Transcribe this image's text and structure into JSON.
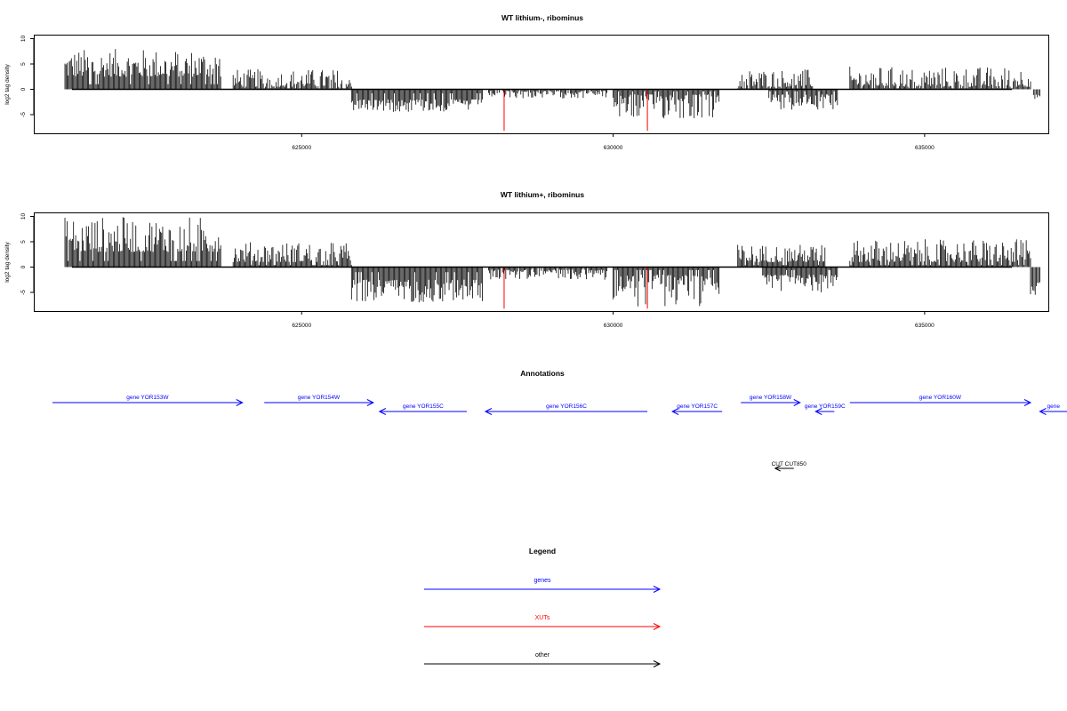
{
  "chart_data": [
    {
      "type": "bar",
      "title": "WT lithium-, ribominus",
      "xlabel": "",
      "ylabel": "log2 tag density",
      "xlim": [
        621000,
        636900
      ],
      "ylim": [
        -9,
        11
      ],
      "xticks": [
        625000,
        630000,
        635000
      ],
      "xtick_labels": [
        "625000",
        "630000",
        "635000"
      ],
      "yticks": [
        -5,
        0,
        5,
        10
      ],
      "ytick_labels": [
        "-5",
        "0",
        "5",
        "10"
      ],
      "segments": [
        {
          "strand": "+",
          "x_start": 621200,
          "x_end": 623700,
          "y_min": 2.5,
          "y_max": 8
        },
        {
          "strand": "+",
          "x_start": 623900,
          "x_end": 625800,
          "y_min": 0.5,
          "y_max": 4
        },
        {
          "strand": "-",
          "x_start": 625800,
          "x_end": 627900,
          "y_min": -2,
          "y_max": -4.5
        },
        {
          "strand": "-",
          "x_start": 628000,
          "x_end": 629900,
          "y_min": -0.3,
          "y_max": -1.8
        },
        {
          "strand": "-",
          "x_start": 630000,
          "x_end": 631700,
          "y_min": -1,
          "y_max": -6
        },
        {
          "strand": "+",
          "x_start": 632000,
          "x_end": 633200,
          "y_min": 0.5,
          "y_max": 4
        },
        {
          "strand": "-",
          "x_start": 632500,
          "x_end": 633600,
          "y_min": -1,
          "y_max": -4
        },
        {
          "strand": "+",
          "x_start": 633800,
          "x_end": 636700,
          "y_min": 0.5,
          "y_max": 4.5
        },
        {
          "strand": "-",
          "x_start": 636750,
          "x_end": 636850,
          "y_min": -1,
          "y_max": -2
        }
      ],
      "highlight_x": [
        628250,
        630550
      ],
      "highlight_y": -8.2
    },
    {
      "type": "bar",
      "title": "WT lithium+, ribominus",
      "xlabel": "",
      "ylabel": "log2 tag density",
      "xlim": [
        621000,
        636900
      ],
      "ylim": [
        -9,
        11
      ],
      "xticks": [
        625000,
        630000,
        635000
      ],
      "xtick_labels": [
        "625000",
        "630000",
        "635000"
      ],
      "yticks": [
        -5,
        0,
        5,
        10
      ],
      "ytick_labels": [
        "-5",
        "0",
        "5",
        "10"
      ],
      "segments": [
        {
          "strand": "+",
          "x_start": 621200,
          "x_end": 623700,
          "y_min": 3,
          "y_max": 10
        },
        {
          "strand": "+",
          "x_start": 623900,
          "x_end": 625800,
          "y_min": 1,
          "y_max": 5
        },
        {
          "strand": "-",
          "x_start": 625800,
          "x_end": 627900,
          "y_min": -2.5,
          "y_max": -7
        },
        {
          "strand": "-",
          "x_start": 628000,
          "x_end": 629900,
          "y_min": -0.5,
          "y_max": -2.5
        },
        {
          "strand": "-",
          "x_start": 630000,
          "x_end": 631700,
          "y_min": -1.5,
          "y_max": -8
        },
        {
          "strand": "+",
          "x_start": 632000,
          "x_end": 633400,
          "y_min": 1,
          "y_max": 4.5
        },
        {
          "strand": "-",
          "x_start": 632400,
          "x_end": 633600,
          "y_min": -1.5,
          "y_max": -5
        },
        {
          "strand": "+",
          "x_start": 633800,
          "x_end": 636700,
          "y_min": 1,
          "y_max": 5.5
        },
        {
          "strand": "-",
          "x_start": 636700,
          "x_end": 636850,
          "y_min": -3,
          "y_max": -6
        }
      ],
      "highlight_x": [
        628250,
        630550
      ],
      "highlight_y": -8.2
    }
  ],
  "annotations": {
    "title": "Annotations",
    "genes": [
      {
        "label": "gene YOR153W",
        "x_start": 621000,
        "x_end": 624050,
        "strand": "+",
        "row": 1
      },
      {
        "label": "gene YOR154W",
        "x_start": 624400,
        "x_end": 626150,
        "strand": "+",
        "row": 1
      },
      {
        "label": "gene YOR155C",
        "x_start": 626250,
        "x_end": 627650,
        "strand": "-",
        "row": 2
      },
      {
        "label": "gene YOR156C",
        "x_start": 627950,
        "x_end": 630550,
        "strand": "-",
        "row": 2
      },
      {
        "label": "gene YOR157C",
        "x_start": 630950,
        "x_end": 631750,
        "strand": "-",
        "row": 2
      },
      {
        "label": "gene YOR158W",
        "x_start": 632050,
        "x_end": 633000,
        "strand": "+",
        "row": 1
      },
      {
        "label": "gene YOR159C",
        "x_start": 633250,
        "x_end": 633550,
        "strand": "-",
        "row": 2
      },
      {
        "label": "gene YOR160W",
        "x_start": 633800,
        "x_end": 636700,
        "strand": "+",
        "row": 1
      },
      {
        "label": "gene",
        "x_start": 636850,
        "x_end": 637900,
        "strand": "-",
        "row": 2
      }
    ],
    "other": [
      {
        "label": "CUT CUT850",
        "x_start": 632600,
        "x_end": 632900,
        "strand": "-"
      }
    ],
    "colors": {
      "genes": "#0000ff",
      "XUTs": "#ff0000",
      "other": "#000000"
    }
  },
  "legend": {
    "title": "Legend",
    "items": [
      {
        "label": "genes",
        "color": "#0000ff"
      },
      {
        "label": "XUTs",
        "color": "#ff0000"
      },
      {
        "label": "other",
        "color": "#000000"
      }
    ]
  }
}
